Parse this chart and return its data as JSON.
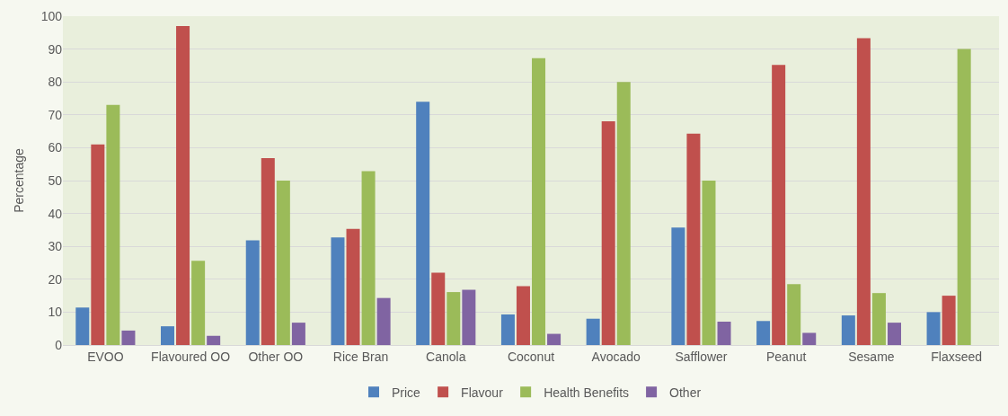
{
  "chart_data": {
    "type": "bar",
    "ylabel": "Percentage",
    "categories": [
      "EVOO",
      "Flavoured OO",
      "Other OO",
      "Rice Bran",
      "Canola",
      "Coconut",
      "Avocado",
      "Safflower",
      "Peanut",
      "Sesame",
      "Flaxseed"
    ],
    "series": [
      {
        "name": "Price",
        "color": "#4f81bd",
        "values": [
          11.4,
          5.7,
          31.8,
          32.7,
          74,
          9.3,
          8,
          35.7,
          7.3,
          9,
          10
        ]
      },
      {
        "name": "Flavour",
        "color": "#c0504d",
        "values": [
          61,
          97,
          56.8,
          35.3,
          22,
          17.9,
          68,
          64.3,
          85.2,
          93.3,
          15
        ]
      },
      {
        "name": "Health Benefits",
        "color": "#9bbb59",
        "values": [
          73,
          25.6,
          50,
          52.9,
          16.1,
          87.2,
          80,
          50,
          18.5,
          15.8,
          90
        ]
      },
      {
        "name": "Other",
        "color": "#8064a2",
        "values": [
          4.4,
          2.8,
          6.8,
          14.3,
          16.8,
          3.4,
          null,
          7.1,
          3.7,
          6.8,
          null
        ]
      }
    ],
    "ylim": [
      0,
      100
    ],
    "yticks": [
      0,
      10,
      20,
      30,
      40,
      50,
      60,
      70,
      80,
      90,
      100
    ],
    "grid": "y",
    "legend": "bottom"
  }
}
